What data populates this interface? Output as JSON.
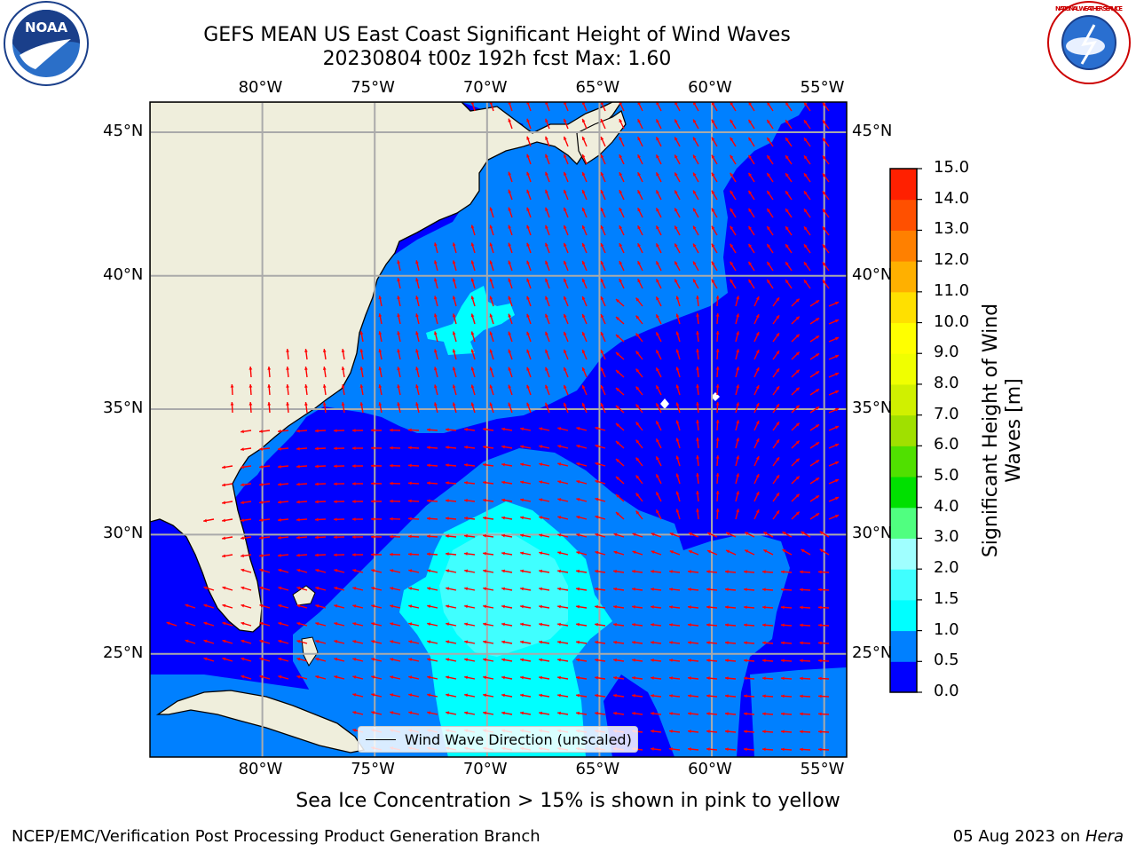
{
  "title_line1": "GEFS MEAN US East Coast Significant Height of Wind Waves",
  "title_line2": "20230804 t00z 192h fcst   Max: 1.60",
  "map": {
    "lon_range": [
      -85,
      -54
    ],
    "lat_range": [
      20.5,
      46
    ],
    "lon_ticks": [
      {
        "lon": -80,
        "label": "80°W"
      },
      {
        "lon": -75,
        "label": "75°W"
      },
      {
        "lon": -70,
        "label": "70°W"
      },
      {
        "lon": -65,
        "label": "65°W"
      },
      {
        "lon": -60,
        "label": "60°W"
      },
      {
        "lon": -55,
        "label": "55°W"
      }
    ],
    "lat_ticks": [
      {
        "lat": 45,
        "label": "45°N"
      },
      {
        "lat": 40,
        "label": "40°N"
      },
      {
        "lat": 35,
        "label": "35°N"
      },
      {
        "lat": 30,
        "label": "30°N"
      },
      {
        "lat": 25,
        "label": "25°N"
      }
    ],
    "colors": {
      "land": "#efeedc",
      "ocean_0_05": "#0000ff",
      "ocean_05_10": "#0080ff",
      "ocean_10_15": "#00ffff",
      "ocean_15_20": "#40ffff",
      "arrow": "#ff0000",
      "grid": "#aaaaaa"
    }
  },
  "legend": {
    "label": "Wind Wave Direction (unscaled)"
  },
  "colorbar": {
    "label": "Significant Height of Wind Waves [m]",
    "label_line1": "Significant Height of Wind",
    "label_line2": "Waves [m]",
    "levels": [
      {
        "label": "0.0",
        "color": "#0000ff"
      },
      {
        "label": "0.5",
        "color": "#0080ff"
      },
      {
        "label": "1.0",
        "color": "#00ffff"
      },
      {
        "label": "1.5",
        "color": "#40ffff"
      },
      {
        "label": "2.0",
        "color": "#a0ffff"
      },
      {
        "label": "3.0",
        "color": "#50ff80"
      },
      {
        "label": "4.0",
        "color": "#00e000"
      },
      {
        "label": "5.0",
        "color": "#50e000"
      },
      {
        "label": "6.0",
        "color": "#a0e000"
      },
      {
        "label": "7.0",
        "color": "#d0f000"
      },
      {
        "label": "8.0",
        "color": "#f0ff00"
      },
      {
        "label": "9.0",
        "color": "#ffff00"
      },
      {
        "label": "10.0",
        "color": "#ffe000"
      },
      {
        "label": "11.0",
        "color": "#ffb000"
      },
      {
        "label": "12.0",
        "color": "#ff8000"
      },
      {
        "label": "13.0",
        "color": "#ff5000"
      },
      {
        "label": "14.0",
        "color": "#ff2000"
      },
      {
        "label": "15.0",
        "color": "#ff0000"
      }
    ]
  },
  "ice_note": "Sea Ice Concentration > 15% is shown in pink to yellow",
  "footer": {
    "left": "NCEP/EMC/Verification Post Processing Product Generation Branch",
    "date": "05 Aug 2023 on",
    "host": "Hera"
  },
  "logos": {
    "left_text": "NOAA",
    "right_text": "NATIONAL WEATHER SERVICE"
  }
}
